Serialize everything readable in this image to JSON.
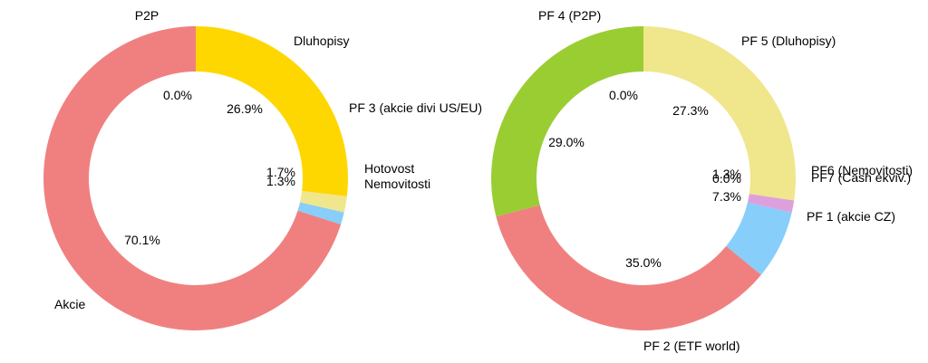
{
  "chart_data": [
    {
      "type": "pie",
      "donut": true,
      "start_angle_deg": 90,
      "direction": "clockwise",
      "slices": [
        {
          "label": "P2P",
          "value": 0.0,
          "pct_label": "0.0%",
          "color": "#9acd32"
        },
        {
          "label": "Dluhopisy",
          "value": 26.9,
          "pct_label": "26.9%",
          "color": "#ffd700"
        },
        {
          "label": "PF 3 (akcie divi US/EU)",
          "value": 0.0,
          "pct_label": "",
          "color": "#ffd700"
        },
        {
          "label": "Hotovost",
          "value": 1.7,
          "pct_label": "1.7%",
          "color": "#f0e68c"
        },
        {
          "label": "Nemovitosti",
          "value": 1.3,
          "pct_label": "1.3%",
          "color": "#87cefa"
        },
        {
          "label": "Akcie",
          "value": 70.1,
          "pct_label": "70.1%",
          "color": "#f08080"
        }
      ]
    },
    {
      "type": "pie",
      "donut": true,
      "start_angle_deg": 90,
      "direction": "clockwise",
      "slices": [
        {
          "label": "PF 4 (P2P)",
          "value": 0.0,
          "pct_label": "0.0%",
          "color": "#9acd32"
        },
        {
          "label": "PF 5 (Dluhopisy)",
          "value": 27.3,
          "pct_label": "27.3%",
          "color": "#f0e68c"
        },
        {
          "label": "PF6 (Nemovitosti)",
          "value": 1.3,
          "pct_label": "1.3%",
          "color": "#dda0dd"
        },
        {
          "label": "PF7 (Cash ekviv.)",
          "value": 0.0,
          "pct_label": "0.0%",
          "color": "#dda0dd"
        },
        {
          "label": "PF 1 (akcie CZ)",
          "value": 7.3,
          "pct_label": "7.3%",
          "color": "#87cefa"
        },
        {
          "label": "PF 2 (ETF world)",
          "value": 35.0,
          "pct_label": "35.0%",
          "color": "#f08080"
        },
        {
          "label": "",
          "value": 29.0,
          "pct_label": "29.0%",
          "color": "#9acd32"
        }
      ]
    }
  ]
}
